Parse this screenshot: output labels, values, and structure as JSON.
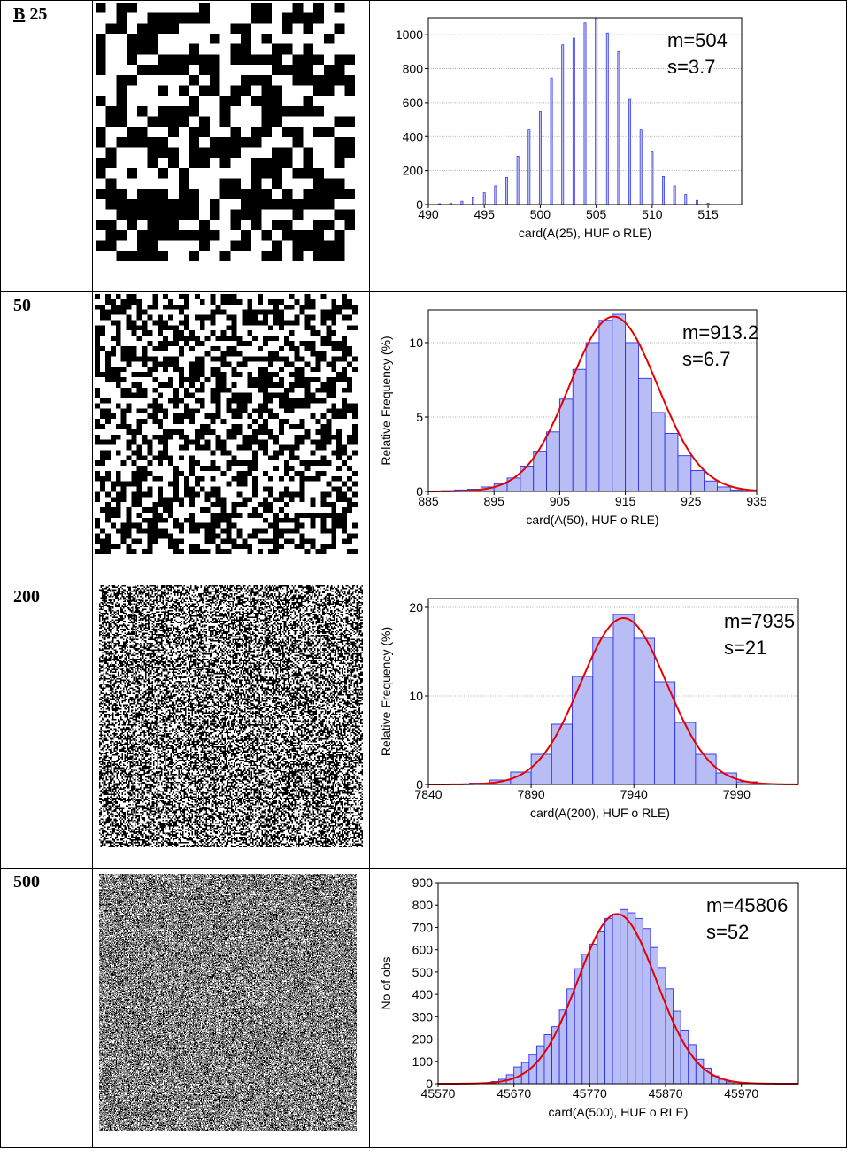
{
  "rows": [
    {
      "label_prefix": "B",
      "label": "25",
      "noise_n": 25
    },
    {
      "label_prefix": "",
      "label": "50",
      "noise_n": 50
    },
    {
      "label_prefix": "",
      "label": "200",
      "noise_n": 200
    },
    {
      "label_prefix": "",
      "label": "500",
      "noise_n": 500
    }
  ],
  "colors": {
    "bar_fill": "#b9bdf5",
    "bar_stroke": "#2a2ff0",
    "fit_curve": "#e60000",
    "grid": "#9a9a9a"
  },
  "chart_data": [
    {
      "type": "bar",
      "title": "",
      "xlabel": "card(A(25), HUF o RLE)",
      "ylabel": "",
      "annotation": [
        "m=504",
        "s=3.7"
      ],
      "xlim": [
        490,
        518
      ],
      "ylim": [
        0,
        1100
      ],
      "xticks": [
        "490",
        "495",
        "500",
        "505",
        "510",
        "515"
      ],
      "yticks": [
        "0",
        "200",
        "400",
        "600",
        "800",
        "1000"
      ],
      "grid": true,
      "fit_curve": false,
      "x": [
        491,
        492,
        493,
        494,
        495,
        496,
        497,
        498,
        499,
        500,
        501,
        502,
        503,
        504,
        505,
        506,
        507,
        508,
        509,
        510,
        511,
        512,
        513,
        514,
        515
      ],
      "values": [
        5,
        8,
        20,
        40,
        70,
        110,
        160,
        285,
        440,
        550,
        745,
        940,
        980,
        1070,
        1095,
        1010,
        900,
        620,
        440,
        310,
        165,
        110,
        60,
        25,
        8
      ]
    },
    {
      "type": "bar",
      "title": "",
      "xlabel": "card(A(50), HUF o RLE)",
      "ylabel": "Relative Frequency (%)",
      "annotation": [
        "m=913.2",
        "s=6.7"
      ],
      "xlim": [
        885,
        935
      ],
      "ylim": [
        0,
        12.2
      ],
      "xticks": [
        "885",
        "895",
        "905",
        "915",
        "925",
        "935"
      ],
      "yticks": [
        "0",
        "5",
        "10"
      ],
      "grid": true,
      "fit_curve": true,
      "fit": {
        "mean": 913.2,
        "sd": 6.7,
        "peak": 11.75
      },
      "x": [
        888,
        890,
        892,
        894,
        896,
        898,
        900,
        902,
        904,
        906,
        908,
        910,
        912,
        914,
        916,
        918,
        920,
        922,
        924,
        926,
        928,
        930,
        932
      ],
      "values": [
        0.05,
        0.1,
        0.15,
        0.3,
        0.5,
        0.9,
        1.7,
        2.7,
        4.0,
        6.2,
        8.2,
        10.0,
        11.5,
        11.9,
        10.0,
        7.6,
        5.3,
        3.9,
        2.4,
        1.4,
        0.7,
        0.3,
        0.1
      ],
      "bin_width": 2
    },
    {
      "type": "bar",
      "title": "",
      "xlabel": "card(A(200), HUF o RLE)",
      "ylabel": "Relative Frequency (%)",
      "annotation": [
        "m=7935",
        "s=21"
      ],
      "xlim": [
        7840,
        8020
      ],
      "ylim": [
        0,
        21
      ],
      "xticks": [
        "7840",
        "7890",
        "7940",
        "7990"
      ],
      "yticks": [
        "0",
        "10",
        "20"
      ],
      "grid": true,
      "fit_curve": true,
      "fit": {
        "mean": 7935,
        "sd": 21,
        "peak": 18.8
      },
      "x": [
        7865,
        7875,
        7885,
        7895,
        7905,
        7915,
        7925,
        7935,
        7945,
        7955,
        7965,
        7975,
        7985,
        7995
      ],
      "values": [
        0.15,
        0.5,
        1.4,
        3.4,
        6.8,
        12.2,
        16.6,
        19.2,
        16.5,
        11.6,
        7.0,
        3.4,
        1.3,
        0.3
      ],
      "bin_width": 10
    },
    {
      "type": "bar",
      "title": "",
      "xlabel": "card(A(500), HUF o RLE)",
      "ylabel": "No of obs",
      "annotation": [
        "m=45806",
        "s=52"
      ],
      "xlim": [
        45570,
        46045
      ],
      "ylim": [
        0,
        900
      ],
      "xticks": [
        "45570",
        "45670",
        "45770",
        "45870",
        "45970"
      ],
      "yticks": [
        "0",
        "100",
        "200",
        "300",
        "400",
        "500",
        "600",
        "700",
        "800",
        "900"
      ],
      "grid": false,
      "fit_curve": true,
      "fit": {
        "mean": 45806,
        "sd": 52,
        "peak": 760
      },
      "x": [
        45645,
        45655,
        45665,
        45675,
        45685,
        45695,
        45705,
        45715,
        45725,
        45735,
        45745,
        45755,
        45765,
        45775,
        45785,
        45795,
        45805,
        45815,
        45825,
        45835,
        45845,
        45855,
        45865,
        45875,
        45885,
        45895,
        45905,
        45915,
        45925,
        45935,
        45945,
        45955
      ],
      "values": [
        10,
        20,
        40,
        75,
        95,
        130,
        170,
        220,
        255,
        330,
        425,
        515,
        580,
        625,
        680,
        740,
        760,
        780,
        765,
        740,
        695,
        610,
        520,
        425,
        325,
        240,
        175,
        110,
        70,
        35,
        20,
        8
      ],
      "bin_width": 10
    }
  ]
}
